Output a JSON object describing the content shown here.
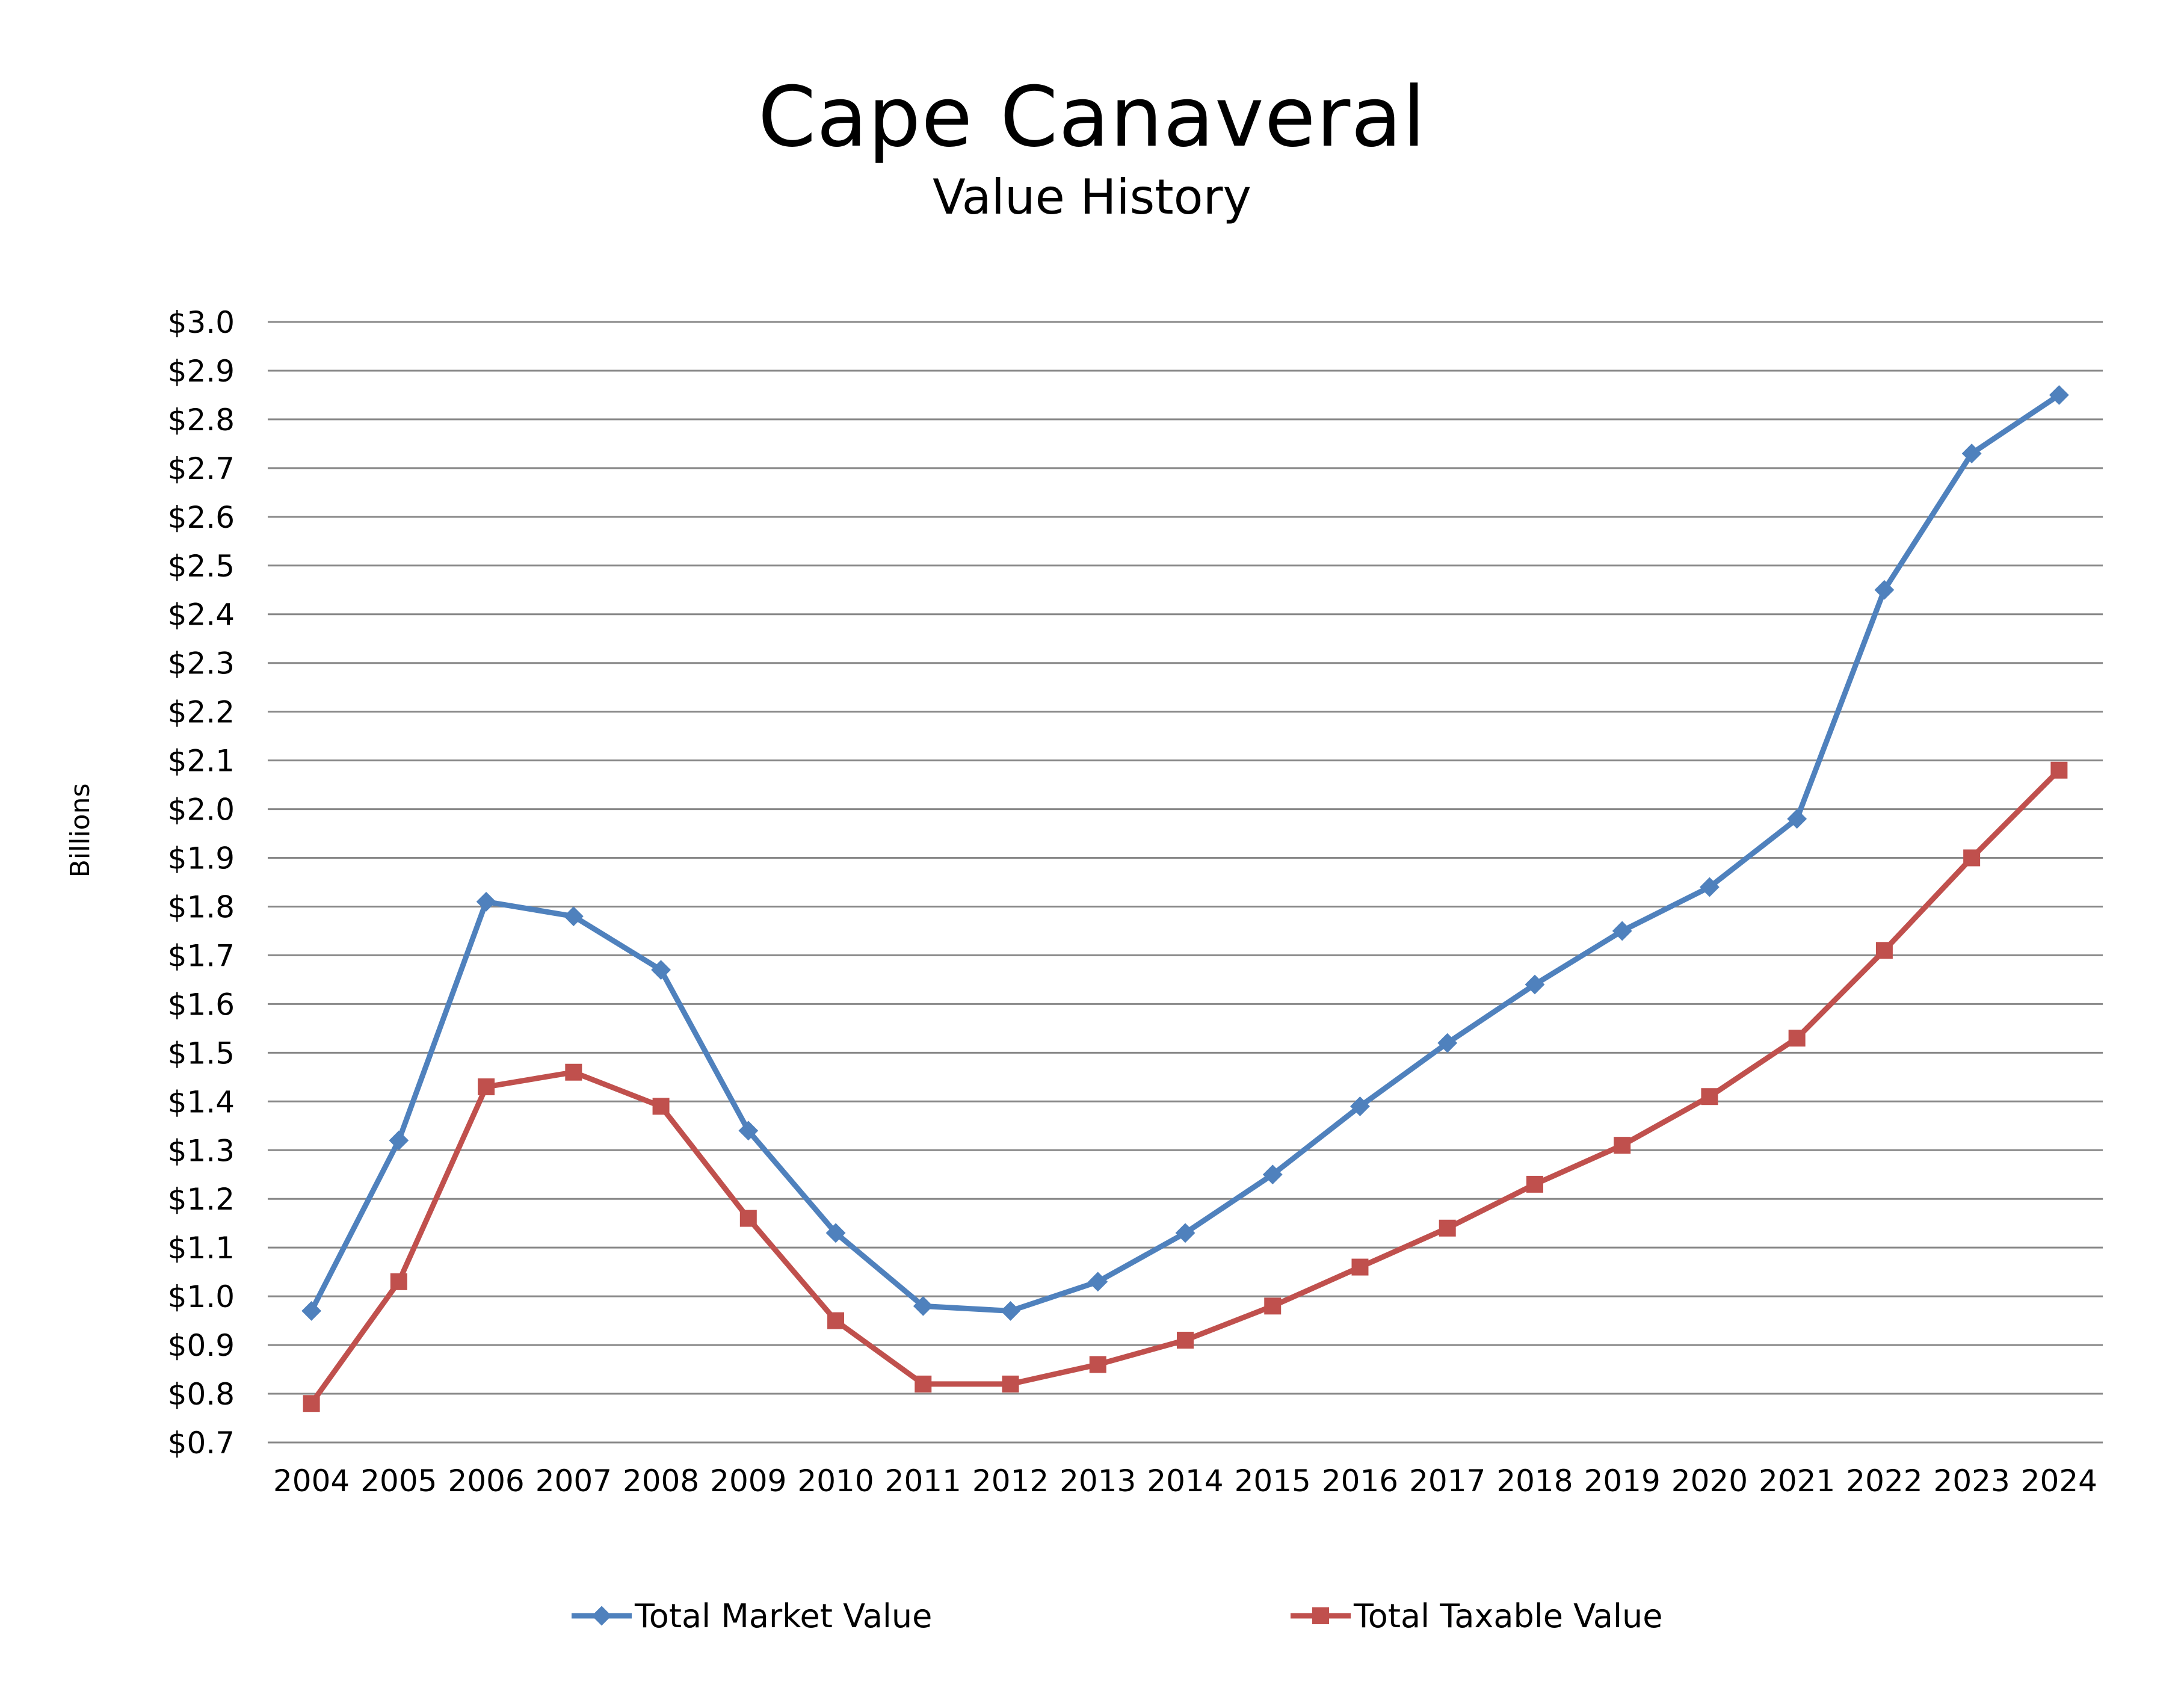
{
  "header": {
    "title": "Cape Canaveral",
    "subtitle": "Value History"
  },
  "colors": {
    "market": "#4F81BD",
    "taxable": "#C0504D",
    "gridline": "#888888"
  },
  "chart_data": {
    "type": "line",
    "title": "Cape Canaveral",
    "subtitle": "Value History",
    "xlabel": "",
    "ylabel": "Billions",
    "ylim": [
      0.7,
      3.0
    ],
    "ytick_step": 0.1,
    "ytick_labels": [
      "$0.7",
      "$0.8",
      "$0.9",
      "$1.0",
      "$1.1",
      "$1.2",
      "$1.3",
      "$1.4",
      "$1.5",
      "$1.6",
      "$1.7",
      "$1.8",
      "$1.9",
      "$2.0",
      "$2.1",
      "$2.2",
      "$2.3",
      "$2.4",
      "$2.5",
      "$2.6",
      "$2.7",
      "$2.8",
      "$2.9",
      "$3.0"
    ],
    "grid": true,
    "legend_position": "bottom",
    "categories": [
      "2004",
      "2005",
      "2006",
      "2007",
      "2008",
      "2009",
      "2010",
      "2011",
      "2012",
      "2013",
      "2014",
      "2015",
      "2016",
      "2017",
      "2018",
      "2019",
      "2020",
      "2021",
      "2022",
      "2023",
      "2024"
    ],
    "series": [
      {
        "name": "Total Market Value",
        "marker": "diamond",
        "color": "#4F81BD",
        "values": [
          0.97,
          1.32,
          1.81,
          1.78,
          1.67,
          1.34,
          1.13,
          0.98,
          0.97,
          1.03,
          1.13,
          1.25,
          1.39,
          1.52,
          1.64,
          1.75,
          1.84,
          1.98,
          2.45,
          2.73,
          2.85
        ]
      },
      {
        "name": "Total Taxable Value",
        "marker": "square",
        "color": "#C0504D",
        "values": [
          0.78,
          1.03,
          1.43,
          1.46,
          1.39,
          1.16,
          0.95,
          0.82,
          0.82,
          0.86,
          0.91,
          0.98,
          1.06,
          1.14,
          1.23,
          1.31,
          1.41,
          1.53,
          1.71,
          1.9,
          2.08
        ]
      }
    ]
  }
}
